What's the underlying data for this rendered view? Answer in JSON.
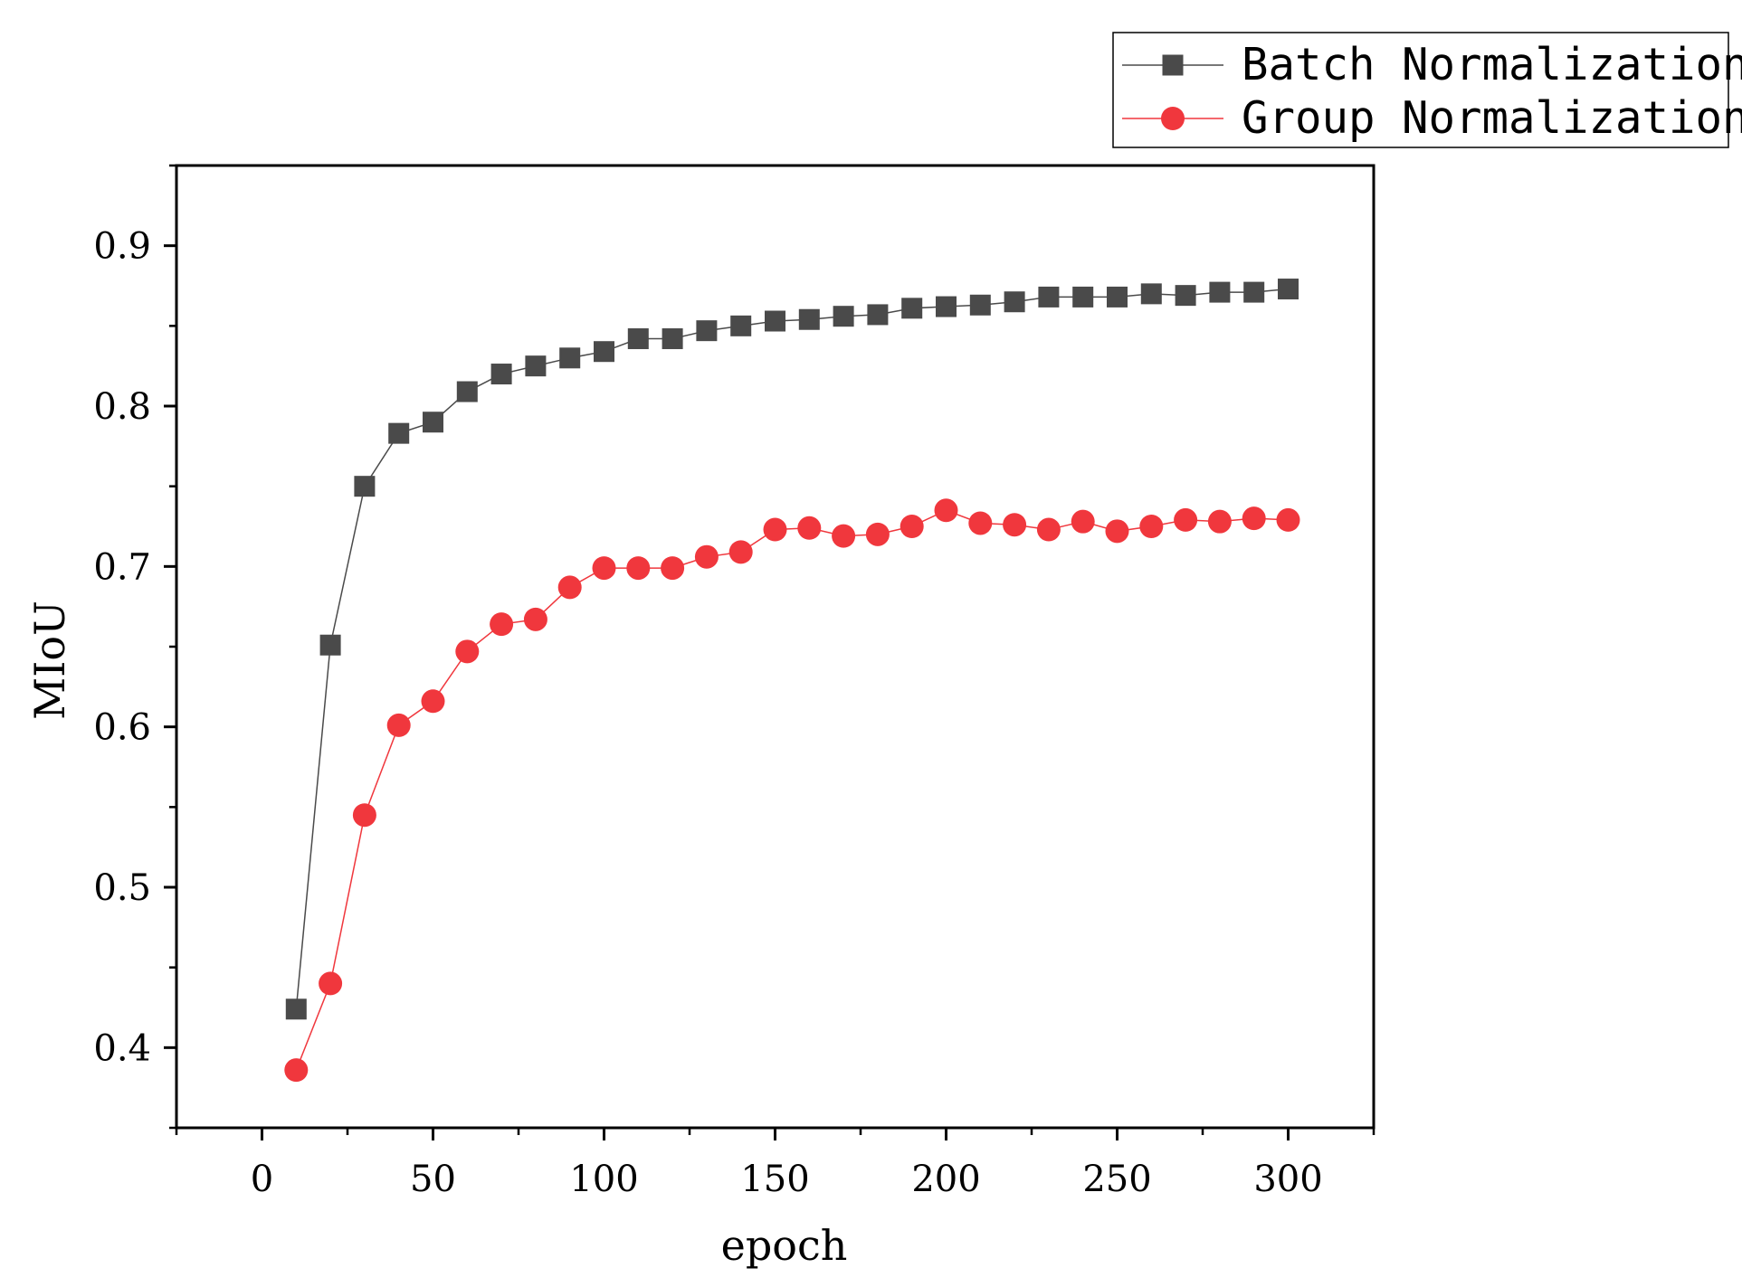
{
  "chart_data": {
    "type": "line",
    "title": "",
    "xlabel": "epoch",
    "ylabel": "MIoU",
    "xlim": [
      -25,
      325
    ],
    "ylim": [
      0.35,
      0.95
    ],
    "xticks": [
      0,
      50,
      100,
      150,
      200,
      250,
      300
    ],
    "xtick_labels": [
      "0",
      "50",
      "100",
      "150",
      "200",
      "250",
      "300"
    ],
    "yticks": [
      0.4,
      0.5,
      0.6,
      0.7,
      0.8,
      0.9
    ],
    "ytick_labels": [
      "0.4",
      "0.5",
      "0.6",
      "0.7",
      "0.8",
      "0.9"
    ],
    "grid": false,
    "legend_position": "top-right-outside",
    "x": [
      10,
      20,
      30,
      40,
      50,
      60,
      70,
      80,
      90,
      100,
      110,
      120,
      130,
      140,
      150,
      160,
      170,
      180,
      190,
      200,
      210,
      220,
      230,
      240,
      250,
      260,
      270,
      280,
      290,
      300
    ],
    "series": [
      {
        "name": "Batch Normalization",
        "marker": "square",
        "color": "#4a4a4a",
        "values": [
          0.424,
          0.651,
          0.75,
          0.783,
          0.79,
          0.809,
          0.82,
          0.825,
          0.83,
          0.834,
          0.842,
          0.842,
          0.847,
          0.85,
          0.853,
          0.854,
          0.856,
          0.857,
          0.861,
          0.862,
          0.863,
          0.865,
          0.868,
          0.868,
          0.868,
          0.87,
          0.869,
          0.871,
          0.871,
          0.873
        ]
      },
      {
        "name": "Group Normalization",
        "marker": "circle",
        "color": "#f0373d",
        "values": [
          0.386,
          0.44,
          0.545,
          0.601,
          0.616,
          0.647,
          0.664,
          0.667,
          0.687,
          0.699,
          0.699,
          0.699,
          0.706,
          0.709,
          0.723,
          0.724,
          0.719,
          0.72,
          0.725,
          0.735,
          0.727,
          0.726,
          0.723,
          0.728,
          0.722,
          0.725,
          0.729,
          0.728,
          0.73,
          0.729
        ]
      }
    ]
  }
}
